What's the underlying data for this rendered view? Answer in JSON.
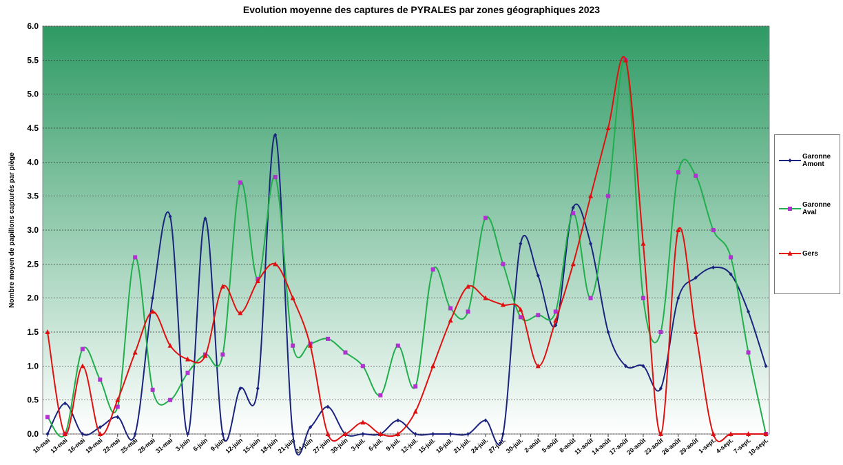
{
  "chart_data": {
    "type": "line",
    "title": "Evolution moyenne des captures de PYRALES par zones géographiques 2023",
    "y_label": "Nombre moyen de papillons capturés par piège",
    "categories": [
      "10-mai",
      "13-mai",
      "16-mai",
      "19-mai",
      "22-mai",
      "25-mai",
      "28-mai",
      "31-mai",
      "3-juin",
      "6-juin",
      "9-juin",
      "12-juin",
      "15-juin",
      "18-juin",
      "21-juin",
      "24-juin",
      "27-juin",
      "30-juin",
      "3-juil.",
      "6-juil.",
      "9-juil.",
      "12-juil.",
      "15-juil.",
      "18-juil.",
      "21-juil.",
      "24-juil.",
      "27-juil.",
      "30-juil.",
      "2-août",
      "5-août",
      "8-août",
      "11-août",
      "14-août",
      "17-août",
      "20-août",
      "23-août",
      "26-août",
      "29-août",
      "1-sept.",
      "4-sept.",
      "7-sept.",
      "10-sept."
    ],
    "series": [
      {
        "name": "Garonne Amont",
        "color": "#1a237e",
        "marker": "diamond",
        "values": [
          0,
          0.45,
          0,
          0.1,
          0.25,
          0,
          2.0,
          3.2,
          0,
          3.17,
          0,
          0.67,
          0.67,
          4.4,
          0,
          0.1,
          0.4,
          0,
          0,
          0,
          0.2,
          0,
          0,
          0,
          0,
          0.2,
          0,
          2.8,
          2.33,
          1.6,
          3.33,
          2.8,
          1.5,
          1.0,
          1.0,
          0.67,
          2.0,
          2.3,
          2.45,
          2.35,
          1.8,
          1.0
        ]
      },
      {
        "name": "Garonne Aval",
        "color": "#1fae4a",
        "marker_color": "#b030d0",
        "marker": "square",
        "values": [
          0.25,
          0,
          1.25,
          0.8,
          0.4,
          2.6,
          0.65,
          0.5,
          0.9,
          1.17,
          1.17,
          3.7,
          2.28,
          3.78,
          1.3,
          1.33,
          1.4,
          1.2,
          1.0,
          0.57,
          1.3,
          0.7,
          2.42,
          1.85,
          1.8,
          3.18,
          2.5,
          1.72,
          1.75,
          1.8,
          3.25,
          2.0,
          3.5,
          5.5,
          2.0,
          1.5,
          3.85,
          3.8,
          3.0,
          2.6,
          1.2,
          0
        ]
      },
      {
        "name": "Gers",
        "color": "#e01010",
        "marker": "triangle",
        "values": [
          1.5,
          0,
          1.0,
          0,
          0.5,
          1.2,
          1.8,
          1.3,
          1.1,
          1.15,
          2.17,
          1.78,
          2.25,
          2.5,
          2.0,
          1.3,
          0,
          0,
          0.17,
          0,
          0,
          0.33,
          1.0,
          1.67,
          2.17,
          2.0,
          1.9,
          1.83,
          1.0,
          1.67,
          2.5,
          3.5,
          4.5,
          5.5,
          2.8,
          0,
          3.0,
          1.5,
          0,
          0,
          0,
          0
        ]
      }
    ],
    "ylim": [
      0,
      6
    ],
    "yticks": [
      {
        "value": 0,
        "label": "0.0"
      },
      {
        "value": 0.5,
        "label": "0.5"
      },
      {
        "value": 1,
        "label": "1.0"
      },
      {
        "value": 1.5,
        "label": "1.5"
      },
      {
        "value": 2,
        "label": "2.0"
      },
      {
        "value": 2.5,
        "label": "2.5"
      },
      {
        "value": 3,
        "label": "3.0"
      },
      {
        "value": 3.5,
        "label": "3.5"
      },
      {
        "value": 4,
        "label": "4.0"
      },
      {
        "value": 4.5,
        "label": "4.5"
      },
      {
        "value": 5,
        "label": "5.0"
      },
      {
        "value": 5.5,
        "label": "5.5"
      },
      {
        "value": 6,
        "label": "6.0"
      }
    ],
    "grid": true,
    "legend": "right",
    "smooth": true
  }
}
